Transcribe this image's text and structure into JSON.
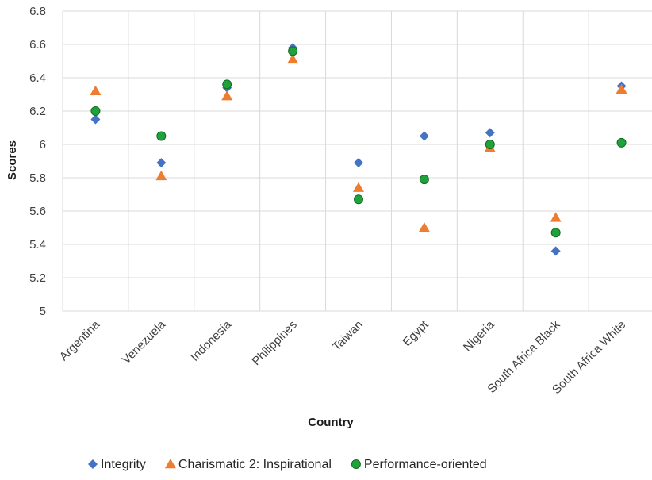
{
  "chart_data": {
    "type": "scatter",
    "title": "",
    "xlabel": "Country",
    "ylabel": "Scores",
    "ylim": [
      5,
      6.8
    ],
    "yticks": [
      "5",
      "5.2",
      "5.4",
      "5.6",
      "5.8",
      "6",
      "6.2",
      "6.4",
      "6.6",
      "6.8"
    ],
    "categories": [
      "Argentina",
      "Venezuela",
      "Indonesia",
      "Philippines",
      "Taiwan",
      "Egypt",
      "Nigeria",
      "South Africa Black",
      "South Africa White"
    ],
    "grid": true,
    "legend_position": "bottom",
    "series": [
      {
        "name": "Integrity",
        "marker": "diamond",
        "color": "#4472c4",
        "values": [
          6.15,
          5.89,
          6.34,
          6.58,
          5.89,
          6.05,
          6.07,
          5.36,
          6.35
        ]
      },
      {
        "name": "Charismatic 2: Inspirational",
        "marker": "triangle",
        "color": "#ed7d31",
        "values": [
          6.32,
          5.81,
          6.29,
          6.51,
          5.74,
          5.5,
          5.98,
          5.56,
          6.33
        ]
      },
      {
        "name": "Performance-oriented",
        "marker": "circle",
        "color": "#1fa23a",
        "values": [
          6.2,
          6.05,
          6.36,
          6.56,
          5.67,
          5.79,
          6.0,
          5.47,
          6.01
        ]
      }
    ]
  }
}
